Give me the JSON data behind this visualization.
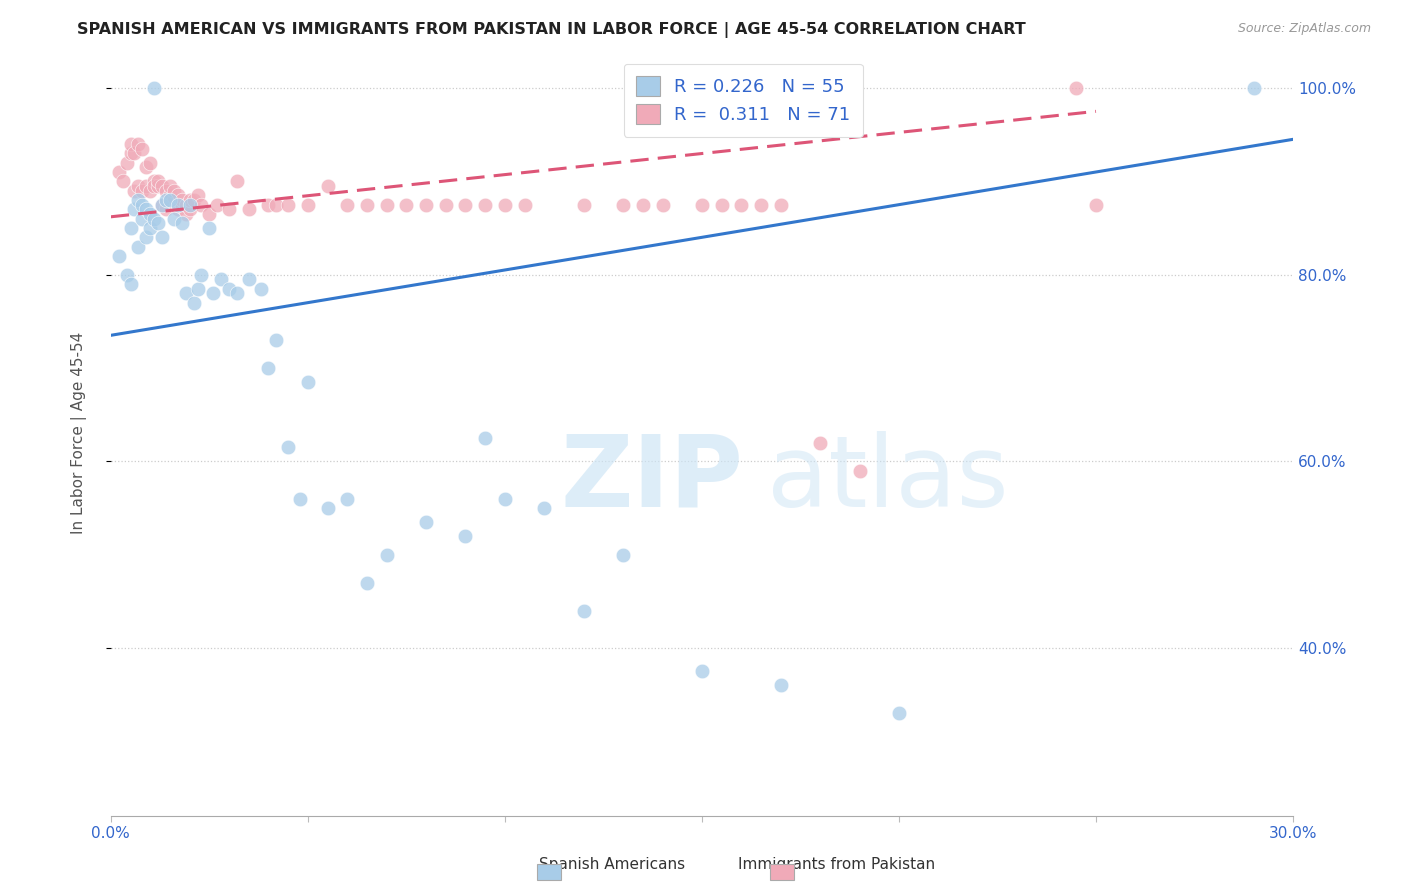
{
  "title": "SPANISH AMERICAN VS IMMIGRANTS FROM PAKISTAN IN LABOR FORCE | AGE 45-54 CORRELATION CHART",
  "source": "Source: ZipAtlas.com",
  "ylabel": "In Labor Force | Age 45-54",
  "xlim": [
    0.0,
    0.3
  ],
  "ylim": [
    0.22,
    1.04
  ],
  "x_ticks": [
    0.0,
    0.05,
    0.1,
    0.15,
    0.2,
    0.25,
    0.3
  ],
  "x_tick_labels": [
    "0.0%",
    "",
    "",
    "",
    "",
    "",
    "30.0%"
  ],
  "y_ticks": [
    0.4,
    0.6,
    0.8,
    1.0
  ],
  "y_tick_labels": [
    "40.0%",
    "60.0%",
    "80.0%",
    "100.0%"
  ],
  "legend_line1": "R = 0.226   N = 55",
  "legend_line2": "R =  0.311   N = 71",
  "blue_color": "#a8cce8",
  "pink_color": "#f0aab8",
  "blue_line_color": "#3377cc",
  "pink_line_color": "#dd5577",
  "blue_scatter_x": [
    0.002,
    0.004,
    0.005,
    0.005,
    0.006,
    0.007,
    0.007,
    0.008,
    0.008,
    0.009,
    0.009,
    0.01,
    0.01,
    0.011,
    0.011,
    0.012,
    0.013,
    0.013,
    0.014,
    0.015,
    0.016,
    0.017,
    0.018,
    0.019,
    0.02,
    0.021,
    0.022,
    0.023,
    0.025,
    0.026,
    0.028,
    0.03,
    0.032,
    0.035,
    0.038,
    0.04,
    0.042,
    0.045,
    0.048,
    0.05,
    0.055,
    0.06,
    0.065,
    0.07,
    0.08,
    0.09,
    0.095,
    0.1,
    0.11,
    0.12,
    0.13,
    0.15,
    0.17,
    0.2,
    0.29
  ],
  "blue_scatter_y": [
    0.82,
    0.8,
    0.85,
    0.79,
    0.87,
    0.83,
    0.88,
    0.875,
    0.86,
    0.84,
    0.87,
    0.865,
    0.85,
    0.86,
    1.0,
    0.855,
    0.875,
    0.84,
    0.88,
    0.88,
    0.86,
    0.875,
    0.855,
    0.78,
    0.875,
    0.77,
    0.785,
    0.8,
    0.85,
    0.78,
    0.795,
    0.785,
    0.78,
    0.795,
    0.785,
    0.7,
    0.73,
    0.615,
    0.56,
    0.685,
    0.55,
    0.56,
    0.47,
    0.5,
    0.535,
    0.52,
    0.625,
    0.56,
    0.55,
    0.44,
    0.5,
    0.375,
    0.36,
    0.33,
    1.0
  ],
  "pink_scatter_x": [
    0.002,
    0.003,
    0.004,
    0.005,
    0.005,
    0.006,
    0.006,
    0.007,
    0.007,
    0.008,
    0.008,
    0.009,
    0.009,
    0.01,
    0.01,
    0.011,
    0.011,
    0.012,
    0.012,
    0.013,
    0.013,
    0.014,
    0.014,
    0.015,
    0.015,
    0.016,
    0.016,
    0.017,
    0.017,
    0.018,
    0.018,
    0.019,
    0.019,
    0.02,
    0.02,
    0.021,
    0.022,
    0.023,
    0.025,
    0.027,
    0.03,
    0.032,
    0.035,
    0.04,
    0.042,
    0.045,
    0.05,
    0.055,
    0.06,
    0.065,
    0.07,
    0.075,
    0.08,
    0.085,
    0.09,
    0.095,
    0.1,
    0.105,
    0.12,
    0.13,
    0.135,
    0.14,
    0.15,
    0.155,
    0.16,
    0.165,
    0.17,
    0.18,
    0.19,
    0.245,
    0.25
  ],
  "pink_scatter_y": [
    0.91,
    0.9,
    0.92,
    0.93,
    0.94,
    0.89,
    0.93,
    0.895,
    0.94,
    0.89,
    0.935,
    0.895,
    0.915,
    0.89,
    0.92,
    0.9,
    0.895,
    0.895,
    0.9,
    0.875,
    0.895,
    0.89,
    0.87,
    0.885,
    0.895,
    0.88,
    0.89,
    0.885,
    0.87,
    0.875,
    0.88,
    0.865,
    0.875,
    0.87,
    0.88,
    0.88,
    0.885,
    0.875,
    0.865,
    0.875,
    0.87,
    0.9,
    0.87,
    0.875,
    0.875,
    0.875,
    0.875,
    0.895,
    0.875,
    0.875,
    0.875,
    0.875,
    0.875,
    0.875,
    0.875,
    0.875,
    0.875,
    0.875,
    0.875,
    0.875,
    0.875,
    0.875,
    0.875,
    0.875,
    0.875,
    0.875,
    0.875,
    0.62,
    0.59,
    1.0,
    0.875
  ],
  "blue_line_x": [
    0.0,
    0.3
  ],
  "blue_line_y": [
    0.735,
    0.945
  ],
  "pink_line_x": [
    0.0,
    0.25
  ],
  "pink_line_y": [
    0.862,
    0.975
  ]
}
